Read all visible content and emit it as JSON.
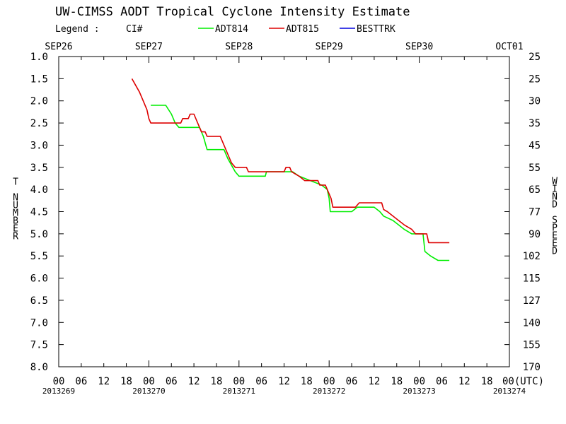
{
  "chart_data": {
    "type": "line",
    "title": "UW-CIMSS AODT Tropical Cyclone Intensity Estimate",
    "legend": {
      "title": "Legend :",
      "quantity": "CI#",
      "placement": "top",
      "entries": [
        {
          "name": "ADT814",
          "color": "#00ee00"
        },
        {
          "name": "ADT815",
          "color": "#dd0000"
        },
        {
          "name": "BESTTRK",
          "color": "#0000dd"
        }
      ]
    },
    "top_date_labels": [
      "SEP26",
      "SEP27",
      "SEP28",
      "SEP29",
      "SEP30",
      "OCT01"
    ],
    "bottom_hour_labels": [
      "00",
      "06",
      "12",
      "18",
      "00",
      "06",
      "12",
      "18",
      "00",
      "06",
      "12",
      "18",
      "00",
      "06",
      "12",
      "18",
      "00",
      "06",
      "12",
      "18",
      "00(UTC)"
    ],
    "bottom_julian_labels": [
      "2013269",
      "2013270",
      "2013271",
      "2013272",
      "2013273",
      "2013274"
    ],
    "ylabel_left": "T NUMBER",
    "ylabel_right": "WIND SPEED",
    "x_unit": "hours from 2013269 00 UTC",
    "xlim": [
      0,
      120
    ],
    "ylim": [
      1.0,
      8.0
    ],
    "y_inverted": true,
    "y_ticks": [
      "1.0",
      "1.5",
      "2.0",
      "2.5",
      "3.0",
      "3.5",
      "4.0",
      "4.5",
      "5.0",
      "5.5",
      "6.0",
      "6.5",
      "7.0",
      "7.5",
      "8.0"
    ],
    "wind_ticks": [
      "25",
      "25",
      "30",
      "35",
      "45",
      "55",
      "65",
      "77",
      "90",
      "102",
      "115",
      "127",
      "140",
      "155",
      "170"
    ],
    "grid": false,
    "series": [
      {
        "name": "ADT814",
        "color": "#00ee00",
        "points": [
          [
            24.5,
            2.1
          ],
          [
            28.5,
            2.1
          ],
          [
            30,
            2.3
          ],
          [
            31,
            2.5
          ],
          [
            32,
            2.6
          ],
          [
            37.5,
            2.6
          ],
          [
            38.5,
            2.8
          ],
          [
            39.5,
            3.1
          ],
          [
            44,
            3.1
          ],
          [
            45,
            3.3
          ],
          [
            46,
            3.45
          ],
          [
            47,
            3.6
          ],
          [
            48,
            3.7
          ],
          [
            55,
            3.7
          ],
          [
            55.3,
            3.6
          ],
          [
            62.3,
            3.6
          ],
          [
            64,
            3.7
          ],
          [
            67,
            3.8
          ],
          [
            70,
            3.9
          ],
          [
            71.5,
            4.0
          ],
          [
            72,
            4.2
          ],
          [
            72.3,
            4.5
          ],
          [
            78,
            4.5
          ],
          [
            79.5,
            4.4
          ],
          [
            84,
            4.4
          ],
          [
            85.5,
            4.5
          ],
          [
            86.5,
            4.6
          ],
          [
            89,
            4.7
          ],
          [
            90.5,
            4.8
          ],
          [
            92,
            4.9
          ],
          [
            94,
            5.0
          ],
          [
            97,
            5.0
          ],
          [
            97.5,
            5.4
          ],
          [
            99,
            5.5
          ],
          [
            101,
            5.6
          ],
          [
            104,
            5.6
          ]
        ]
      },
      {
        "name": "ADT815",
        "color": "#dd0000",
        "points": [
          [
            19.5,
            1.5
          ],
          [
            20.5,
            1.65
          ],
          [
            21.5,
            1.8
          ],
          [
            22.5,
            2.0
          ],
          [
            23.5,
            2.2
          ],
          [
            24,
            2.4
          ],
          [
            24.5,
            2.5
          ],
          [
            32.5,
            2.5
          ],
          [
            33,
            2.4
          ],
          [
            34.5,
            2.4
          ],
          [
            35,
            2.3
          ],
          [
            36,
            2.3
          ],
          [
            37,
            2.5
          ],
          [
            38,
            2.7
          ],
          [
            39,
            2.7
          ],
          [
            39.5,
            2.8
          ],
          [
            43,
            2.8
          ],
          [
            44,
            3.0
          ],
          [
            45,
            3.2
          ],
          [
            46,
            3.4
          ],
          [
            47,
            3.5
          ],
          [
            50,
            3.5
          ],
          [
            50.5,
            3.6
          ],
          [
            60,
            3.6
          ],
          [
            60.5,
            3.5
          ],
          [
            61.5,
            3.5
          ],
          [
            62,
            3.6
          ],
          [
            64,
            3.7
          ],
          [
            65.5,
            3.8
          ],
          [
            69,
            3.8
          ],
          [
            69.5,
            3.9
          ],
          [
            71,
            3.9
          ],
          [
            72.5,
            4.2
          ],
          [
            73,
            4.4
          ],
          [
            79,
            4.4
          ],
          [
            80,
            4.3
          ],
          [
            86,
            4.3
          ],
          [
            86.5,
            4.45
          ],
          [
            87.5,
            4.5
          ],
          [
            89,
            4.6
          ],
          [
            90.5,
            4.7
          ],
          [
            92,
            4.8
          ],
          [
            94,
            4.9
          ],
          [
            95,
            5.0
          ],
          [
            98,
            5.0
          ],
          [
            98.5,
            5.2
          ],
          [
            104,
            5.2
          ]
        ]
      },
      {
        "name": "BESTTRK",
        "color": "#0000dd",
        "points": []
      }
    ]
  }
}
